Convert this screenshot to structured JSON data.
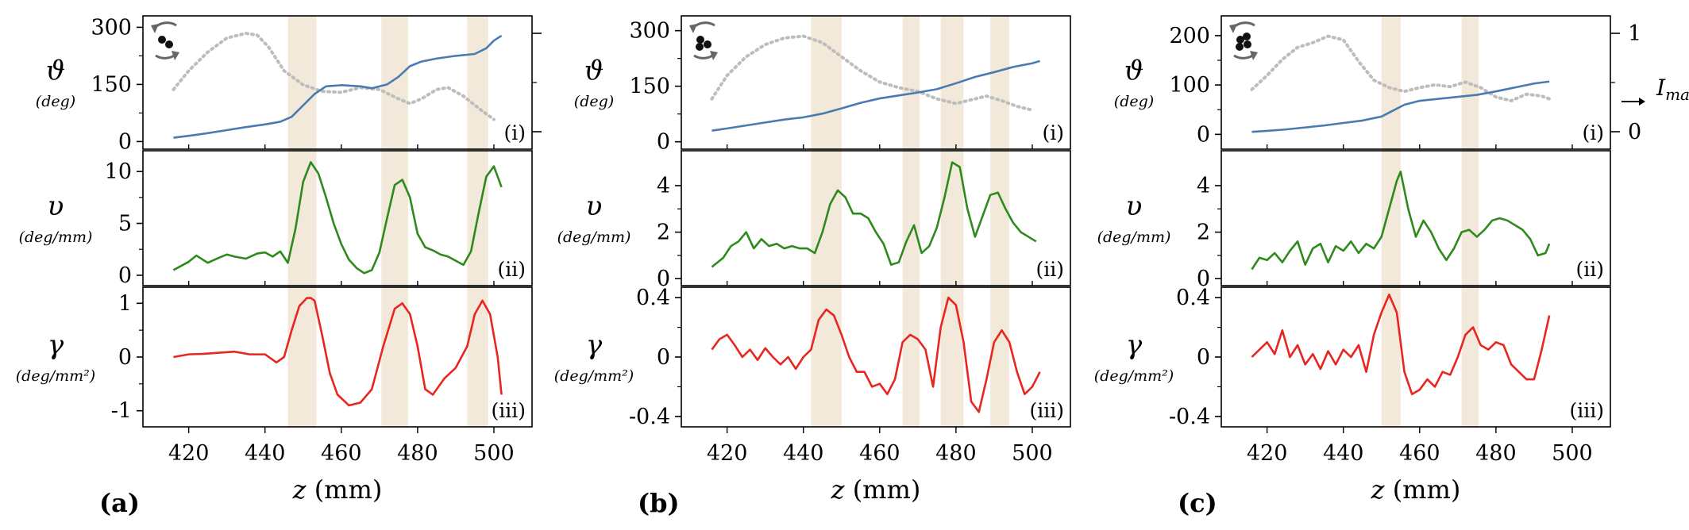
{
  "chart_data": {
    "type": "line",
    "shared": {
      "xlabel_var": "z",
      "xlabel_unit": " (mm)",
      "xticks": [
        420,
        440,
        460,
        480,
        500
      ],
      "xlim": [
        408,
        510
      ],
      "row_labels": [
        "(i)",
        "(ii)",
        "(iii)"
      ],
      "row_symbols": [
        "ϑ",
        "υ",
        "γ"
      ],
      "row_units": [
        "(deg)",
        "(deg/mm)",
        "(deg/mm²)"
      ],
      "right_axis_label": "I",
      "right_axis_sub": "max",
      "right_axis_ticks": [
        "1",
        "0"
      ],
      "colors": {
        "theta": "#4a7bb0",
        "intensity": "#bdbdbd",
        "velocity": "#2e8a1c",
        "accel": "#e8261f",
        "band": "#f3e9da"
      }
    },
    "panels": [
      {
        "letter": "(a)",
        "bands": [
          [
            446,
            453.5
          ],
          [
            470.5,
            477.5
          ],
          [
            493,
            498.5
          ]
        ],
        "theta": {
          "ylim": [
            -20,
            330
          ],
          "yticks": [
            0,
            150,
            300
          ],
          "x": [
            416,
            420,
            425,
            430,
            435,
            440,
            444,
            447,
            450,
            453,
            456,
            460,
            465,
            468,
            472,
            475,
            478,
            481,
            485,
            490,
            495,
            498,
            500,
            502
          ],
          "y": [
            10,
            15,
            22,
            30,
            38,
            45,
            52,
            65,
            95,
            125,
            145,
            148,
            145,
            140,
            150,
            170,
            198,
            210,
            218,
            225,
            230,
            245,
            265,
            278
          ]
        },
        "intensity": {
          "x": [
            416,
            420,
            425,
            430,
            435,
            438,
            441,
            445,
            450,
            455,
            460,
            465,
            470,
            475,
            478,
            481,
            485,
            488,
            492,
            496,
            500
          ],
          "y": [
            0.4,
            0.6,
            0.8,
            0.95,
            1.0,
            0.98,
            0.85,
            0.6,
            0.45,
            0.38,
            0.37,
            0.42,
            0.4,
            0.3,
            0.25,
            0.3,
            0.4,
            0.42,
            0.33,
            0.2,
            0.08
          ]
        },
        "velocity": {
          "ylim": [
            -1,
            12
          ],
          "yticks": [
            0,
            5,
            10
          ],
          "x": [
            416,
            420,
            422,
            425,
            428,
            430,
            432,
            435,
            438,
            440,
            442,
            444,
            446,
            448,
            450,
            452,
            454,
            456,
            458,
            460,
            462,
            464,
            466,
            468,
            470,
            472,
            474,
            476,
            478,
            480,
            482,
            484,
            486,
            488,
            490,
            492,
            494,
            496,
            498,
            500,
            502
          ],
          "y": [
            0.5,
            1.3,
            1.9,
            1.2,
            1.7,
            2.0,
            1.8,
            1.6,
            2.1,
            2.2,
            1.8,
            2.3,
            1.2,
            4.5,
            9.0,
            10.9,
            9.8,
            7.5,
            5.0,
            3.0,
            1.5,
            0.7,
            0.2,
            0.5,
            2.2,
            5.5,
            8.7,
            9.2,
            7.5,
            4.0,
            2.7,
            2.4,
            2.0,
            1.8,
            1.4,
            1.0,
            2.3,
            6.0,
            9.5,
            10.5,
            8.5
          ]
        },
        "accel": {
          "ylim": [
            -1.3,
            1.3
          ],
          "yticks": [
            -1,
            0,
            1
          ],
          "ytick_labels": [
            "-1",
            "0",
            "1"
          ],
          "x": [
            416,
            420,
            424,
            428,
            432,
            436,
            440,
            443,
            445,
            447,
            449,
            451,
            452,
            453,
            455,
            457,
            459,
            462,
            465,
            468,
            471,
            474,
            476,
            478,
            480,
            482,
            484,
            487,
            490,
            493,
            495,
            497,
            499,
            501,
            502
          ],
          "y": [
            0.0,
            0.05,
            0.06,
            0.08,
            0.1,
            0.05,
            0.05,
            -0.1,
            0.0,
            0.5,
            0.95,
            1.1,
            1.1,
            1.05,
            0.4,
            -0.3,
            -0.7,
            -0.9,
            -0.85,
            -0.6,
            0.2,
            0.9,
            1.0,
            0.8,
            0.2,
            -0.6,
            -0.7,
            -0.4,
            -0.2,
            0.2,
            0.8,
            1.05,
            0.8,
            0.0,
            -0.7
          ]
        }
      },
      {
        "letter": "(b)",
        "bands": [
          [
            442,
            450
          ],
          [
            466,
            470.5
          ],
          [
            476,
            482
          ],
          [
            489,
            494
          ]
        ],
        "theta": {
          "ylim": [
            -20,
            340
          ],
          "yticks": [
            0,
            150,
            300
          ],
          "x": [
            416,
            420,
            425,
            430,
            435,
            440,
            445,
            450,
            455,
            460,
            465,
            470,
            475,
            480,
            485,
            490,
            495,
            500,
            502
          ],
          "y": [
            30,
            36,
            44,
            52,
            60,
            66,
            76,
            90,
            105,
            117,
            125,
            133,
            142,
            158,
            175,
            188,
            202,
            212,
            218
          ]
        },
        "intensity": {
          "x": [
            416,
            420,
            425,
            430,
            435,
            440,
            445,
            450,
            455,
            460,
            465,
            470,
            475,
            480,
            485,
            488,
            492,
            496,
            500
          ],
          "y": [
            0.3,
            0.55,
            0.75,
            0.88,
            0.95,
            0.97,
            0.9,
            0.75,
            0.6,
            0.48,
            0.42,
            0.38,
            0.3,
            0.25,
            0.3,
            0.33,
            0.28,
            0.22,
            0.18
          ]
        },
        "velocity": {
          "ylim": [
            -0.3,
            5.5
          ],
          "yticks": [
            0,
            2,
            4
          ],
          "x": [
            416,
            419,
            421,
            423,
            425,
            427,
            429,
            431,
            433,
            435,
            437,
            439,
            441,
            443,
            445,
            447,
            449,
            451,
            453,
            455,
            457,
            459,
            461,
            463,
            465,
            467,
            469,
            471,
            473,
            475,
            477,
            479,
            481,
            483,
            485,
            487,
            489,
            491,
            493,
            495,
            497,
            499,
            501
          ],
          "y": [
            0.5,
            0.9,
            1.4,
            1.6,
            2.0,
            1.3,
            1.7,
            1.4,
            1.5,
            1.3,
            1.4,
            1.3,
            1.3,
            1.1,
            2.0,
            3.2,
            3.8,
            3.5,
            2.8,
            2.8,
            2.6,
            2.0,
            1.5,
            0.6,
            0.7,
            1.6,
            2.3,
            1.1,
            1.4,
            2.2,
            3.5,
            5.0,
            4.8,
            3.0,
            1.8,
            2.7,
            3.6,
            3.7,
            3.0,
            2.4,
            2.0,
            1.8,
            1.6
          ]
        },
        "accel": {
          "ylim": [
            -0.47,
            0.47
          ],
          "yticks": [
            -0.4,
            0,
            0.4
          ],
          "ytick_labels": [
            "-0.4",
            "0",
            "0.4"
          ],
          "x": [
            416,
            418,
            420,
            422,
            424,
            426,
            428,
            430,
            432,
            434,
            436,
            438,
            440,
            442,
            444,
            446,
            448,
            450,
            452,
            454,
            456,
            458,
            460,
            462,
            464,
            466,
            468,
            470,
            472,
            474,
            476,
            478,
            480,
            482,
            484,
            486,
            488,
            490,
            492,
            494,
            496,
            498,
            500,
            502
          ],
          "y": [
            0.05,
            0.12,
            0.15,
            0.08,
            0.0,
            0.05,
            -0.02,
            0.06,
            0.0,
            -0.05,
            0.0,
            -0.08,
            0.0,
            0.05,
            0.25,
            0.32,
            0.28,
            0.15,
            0.0,
            -0.1,
            -0.1,
            -0.2,
            -0.18,
            -0.25,
            -0.15,
            0.1,
            0.15,
            0.12,
            0.05,
            -0.2,
            0.2,
            0.4,
            0.35,
            0.1,
            -0.3,
            -0.37,
            -0.15,
            0.1,
            0.18,
            0.1,
            -0.1,
            -0.25,
            -0.2,
            -0.1
          ]
        }
      },
      {
        "letter": "(c)",
        "bands": [
          [
            450,
            455
          ],
          [
            471,
            475.5
          ]
        ],
        "theta": {
          "ylim": [
            -30,
            240
          ],
          "yticks": [
            0,
            100,
            200
          ],
          "x": [
            416,
            420,
            425,
            430,
            435,
            440,
            445,
            450,
            453,
            456,
            460,
            465,
            470,
            475,
            480,
            485,
            490,
            494
          ],
          "y": [
            5,
            7,
            10,
            14,
            18,
            23,
            28,
            36,
            48,
            60,
            68,
            72,
            76,
            80,
            87,
            95,
            103,
            107
          ]
        },
        "intensity": {
          "x": [
            416,
            420,
            424,
            428,
            432,
            436,
            440,
            444,
            448,
            452,
            456,
            460,
            464,
            468,
            472,
            476,
            480,
            484,
            488,
            492,
            494
          ],
          "y": [
            0.4,
            0.55,
            0.72,
            0.85,
            0.9,
            0.97,
            0.93,
            0.7,
            0.5,
            0.42,
            0.38,
            0.42,
            0.45,
            0.43,
            0.48,
            0.42,
            0.32,
            0.28,
            0.35,
            0.33,
            0.3
          ]
        },
        "velocity": {
          "ylim": [
            -0.3,
            5.5
          ],
          "yticks": [
            0,
            2,
            4
          ],
          "x": [
            416,
            418,
            420,
            422,
            424,
            426,
            428,
            430,
            432,
            434,
            436,
            438,
            440,
            442,
            444,
            446,
            448,
            450,
            452,
            454,
            455,
            457,
            459,
            461,
            463,
            465,
            467,
            469,
            471,
            473,
            475,
            477,
            479,
            481,
            483,
            485,
            487,
            489,
            491,
            493,
            494
          ],
          "y": [
            0.4,
            0.9,
            0.8,
            1.1,
            0.7,
            1.2,
            1.6,
            0.6,
            1.3,
            1.5,
            0.7,
            1.4,
            1.2,
            1.6,
            1.1,
            1.5,
            1.3,
            1.8,
            3.0,
            4.2,
            4.6,
            3.0,
            1.8,
            2.5,
            2.0,
            1.3,
            0.8,
            1.3,
            2.0,
            2.1,
            1.8,
            2.1,
            2.5,
            2.6,
            2.5,
            2.3,
            2.1,
            1.7,
            1.0,
            1.1,
            1.5
          ]
        },
        "accel": {
          "ylim": [
            -0.47,
            0.47
          ],
          "yticks": [
            -0.4,
            0,
            0.4
          ],
          "ytick_labels": [
            "-0.4",
            "0",
            "0.4"
          ],
          "x": [
            416,
            418,
            420,
            422,
            424,
            426,
            428,
            430,
            432,
            434,
            436,
            438,
            440,
            442,
            444,
            446,
            448,
            450,
            452,
            454,
            456,
            458,
            460,
            462,
            464,
            466,
            468,
            470,
            472,
            474,
            476,
            478,
            480,
            482,
            484,
            486,
            488,
            490,
            492,
            494
          ],
          "y": [
            0.0,
            0.05,
            0.1,
            0.02,
            0.18,
            0.0,
            0.08,
            -0.05,
            0.02,
            -0.08,
            0.04,
            -0.05,
            0.05,
            0.0,
            0.08,
            -0.1,
            0.15,
            0.3,
            0.42,
            0.3,
            -0.1,
            -0.25,
            -0.22,
            -0.15,
            -0.2,
            -0.1,
            -0.12,
            0.0,
            0.15,
            0.2,
            0.08,
            0.05,
            0.1,
            0.08,
            -0.05,
            -0.1,
            -0.15,
            -0.15,
            0.05,
            0.28
          ]
        }
      }
    ]
  }
}
